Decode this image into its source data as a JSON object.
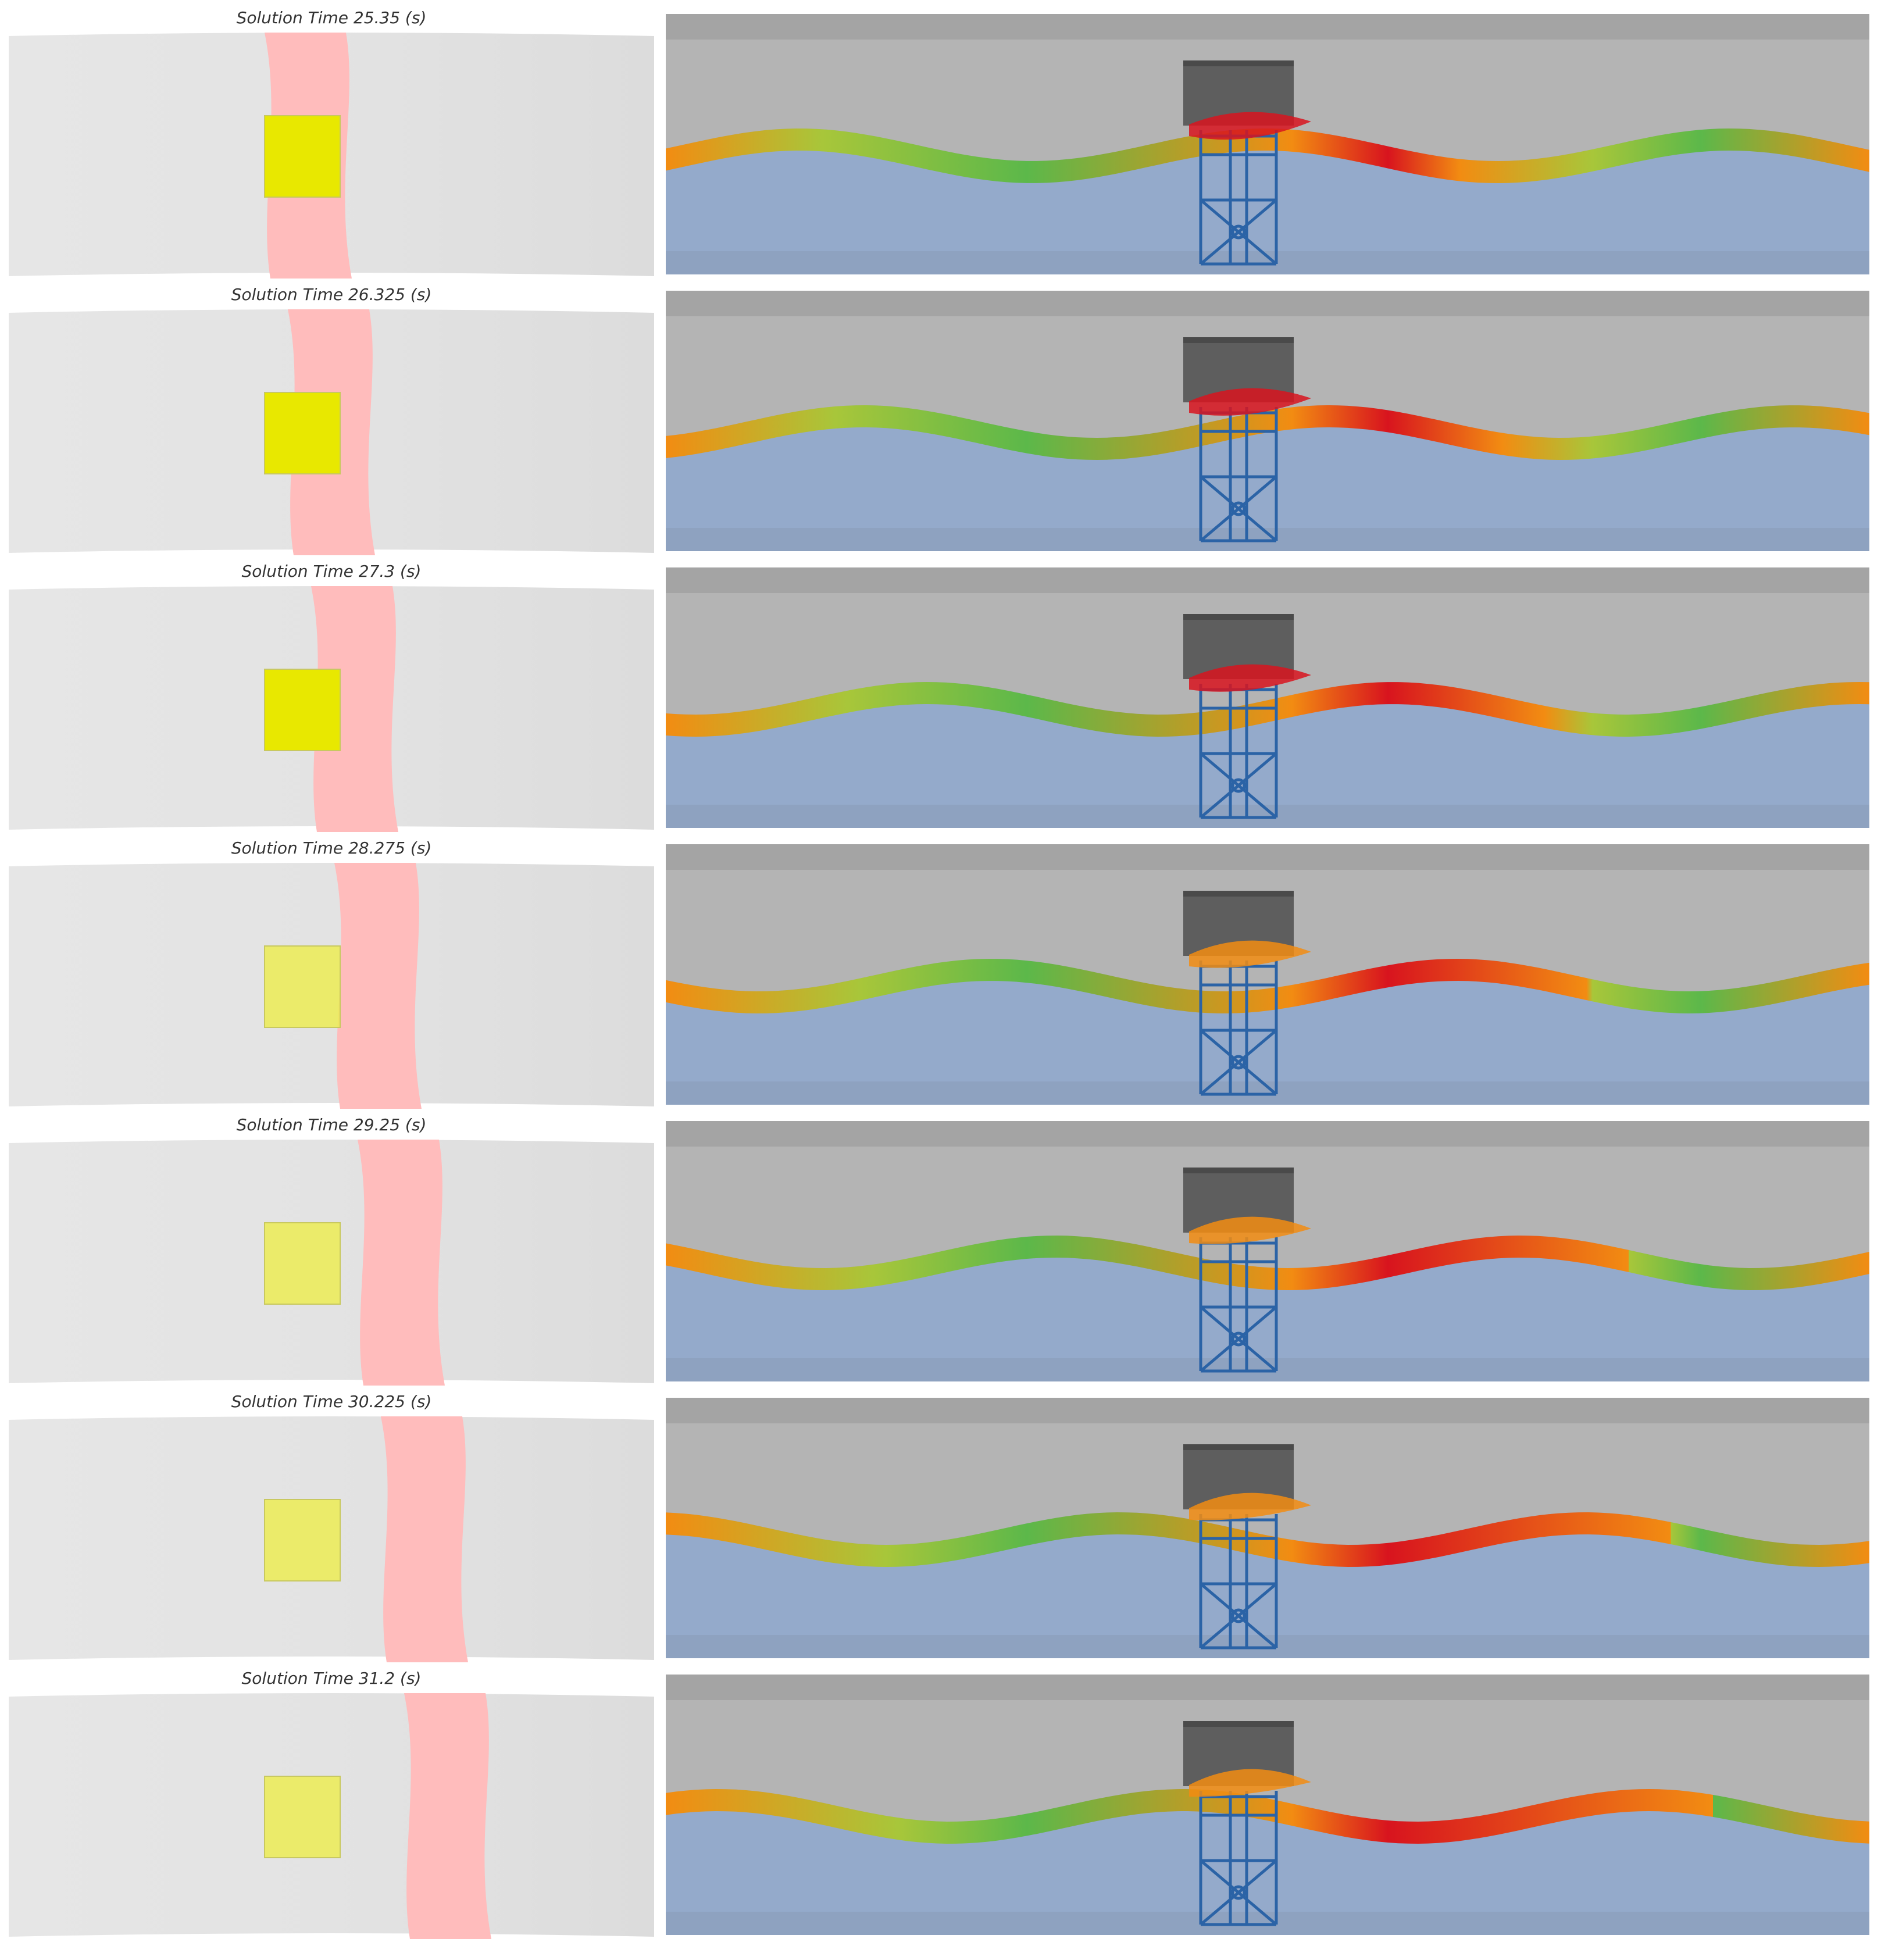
{
  "frames": [
    {
      "label": "Solution Time 25.35 (s)"
    },
    {
      "label": "Solution Time 26.325 (s)"
    },
    {
      "label": "Solution Time 27.3 (s)"
    },
    {
      "label": "Solution Time 28.275 (s)"
    },
    {
      "label": "Solution Time 29.25 (s)"
    },
    {
      "label": "Solution Time 30.225 (s)"
    },
    {
      "label": "Solution Time 31.2 (s)"
    }
  ],
  "colors": {
    "plan_background": "#e3e3e3",
    "wave_crest_band": "#ffbcbc",
    "deck_plan": "#e8e800",
    "air": "#b4b4b4",
    "air_top": "#a4a4a4",
    "water": "#94aacb",
    "seabed": "#8ea2c0",
    "deck_side": "#5e5e5e",
    "jacket": "#2b63a6",
    "surface_high": "#d8141e",
    "surface_mid": "#f28c12",
    "surface_low": "#5cb84a"
  }
}
